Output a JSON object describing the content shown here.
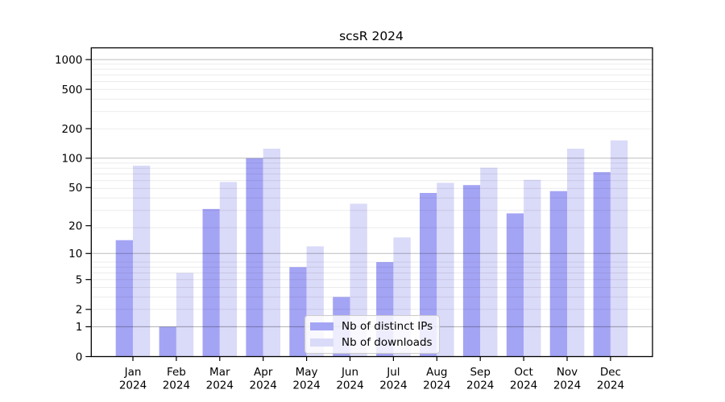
{
  "chart_data": {
    "type": "bar",
    "title": "scsR 2024",
    "categories": [
      "Jan",
      "Feb",
      "Mar",
      "Apr",
      "May",
      "Jun",
      "Jul",
      "Aug",
      "Sep",
      "Oct",
      "Nov",
      "Dec"
    ],
    "x_year": "2024",
    "series": [
      {
        "name": "Nb of distinct IPs",
        "color": "#a4a4f5",
        "values": [
          14,
          1,
          30,
          100,
          7,
          3,
          8,
          44,
          53,
          27,
          46,
          72
        ]
      },
      {
        "name": "Nb of downloads",
        "color": "#dadaf9",
        "values": [
          84,
          6,
          57,
          125,
          12,
          34,
          15,
          56,
          80,
          60,
          125,
          152
        ]
      }
    ],
    "y_ticks": [
      0,
      1,
      2,
      5,
      10,
      20,
      50,
      100,
      200,
      500,
      1000
    ],
    "scale": "log10(1+v)",
    "ylim": [
      0,
      1300
    ],
    "xlabel": "",
    "ylabel": "",
    "grid": "on",
    "legend_position": "lower-center"
  }
}
